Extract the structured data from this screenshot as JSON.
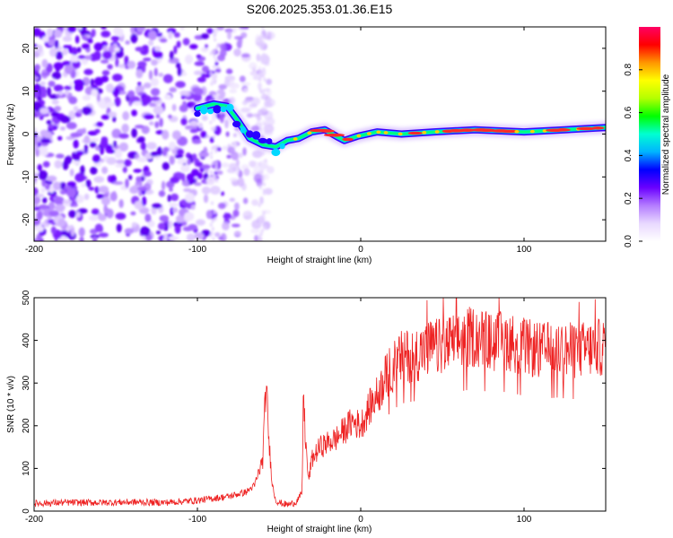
{
  "title": "S206.2025.353.01.36.E15",
  "chart_data": [
    {
      "type": "heatmap",
      "title": "",
      "xlabel": "Height of straight line (km)",
      "ylabel": "Frequency (Hz)",
      "xlim": [
        -200,
        150
      ],
      "ylim": [
        -25,
        25
      ],
      "xticks": [
        -200,
        -100,
        0,
        100
      ],
      "yticks": [
        -20,
        -10,
        0,
        10,
        20
      ],
      "colorbar": {
        "label": "Normalized spectral amplitude",
        "range": [
          0,
          1
        ],
        "ticks": [
          "0.0",
          "0.2",
          "0.4",
          "0.6",
          "0.8"
        ],
        "colors": [
          "#ffffff",
          "#e8d8ff",
          "#b47cff",
          "#6a00ff",
          "#0000ff",
          "#00b4ff",
          "#00ffd2",
          "#00ff00",
          "#b4ff00",
          "#ffff00",
          "#ff9600",
          "#ff0000",
          "#ff0064"
        ]
      },
      "ridge": [
        {
          "x": -100,
          "f": 6.0
        },
        {
          "x": -90,
          "f": 7.0
        },
        {
          "x": -82,
          "f": 6.5
        },
        {
          "x": -75,
          "f": 3.0
        },
        {
          "x": -68,
          "f": -1.0
        },
        {
          "x": -60,
          "f": -2.5
        },
        {
          "x": -52,
          "f": -3.0
        },
        {
          "x": -45,
          "f": -1.5
        },
        {
          "x": -38,
          "f": -1.0
        },
        {
          "x": -30,
          "f": 0.5
        },
        {
          "x": -22,
          "f": 1.0
        },
        {
          "x": -15,
          "f": -0.5
        },
        {
          "x": -10,
          "f": -1.5
        },
        {
          "x": -2,
          "f": -0.5
        },
        {
          "x": 10,
          "f": 0.5
        },
        {
          "x": 25,
          "f": 0.0
        },
        {
          "x": 45,
          "f": 0.5
        },
        {
          "x": 70,
          "f": 1.0
        },
        {
          "x": 100,
          "f": 0.5
        },
        {
          "x": 125,
          "f": 1.0
        },
        {
          "x": 150,
          "f": 1.5
        }
      ]
    },
    {
      "type": "line",
      "title": "",
      "xlabel": "Height of straight line (km)",
      "ylabel": "SNR (10 * v/v)",
      "xlim": [
        -200,
        150
      ],
      "ylim": [
        0,
        500
      ],
      "xticks": [
        -200,
        -100,
        0,
        100
      ],
      "yticks": [
        0,
        100,
        200,
        300,
        400,
        500
      ],
      "series": [
        {
          "name": "SNR",
          "color": "#ee2222",
          "x": [
            -200,
            -180,
            -160,
            -140,
            -120,
            -100,
            -90,
            -80,
            -70,
            -65,
            -60,
            -58,
            -56,
            -54,
            -52,
            -50,
            -45,
            -40,
            -36,
            -35,
            -34,
            -32,
            -30,
            -25,
            -20,
            -15,
            -10,
            -5,
            0,
            5,
            10,
            15,
            20,
            25,
            30,
            35,
            40,
            50,
            60,
            70,
            80,
            90,
            100,
            110,
            120,
            130,
            140,
            150
          ],
          "values": [
            18,
            20,
            20,
            21,
            20,
            25,
            30,
            35,
            45,
            60,
            120,
            300,
            150,
            60,
            25,
            20,
            15,
            20,
            40,
            280,
            180,
            70,
            120,
            150,
            160,
            170,
            190,
            210,
            200,
            240,
            270,
            310,
            340,
            360,
            365,
            370,
            380,
            385,
            400,
            410,
            395,
            400,
            385,
            375,
            380,
            375,
            380,
            385
          ]
        }
      ]
    }
  ]
}
